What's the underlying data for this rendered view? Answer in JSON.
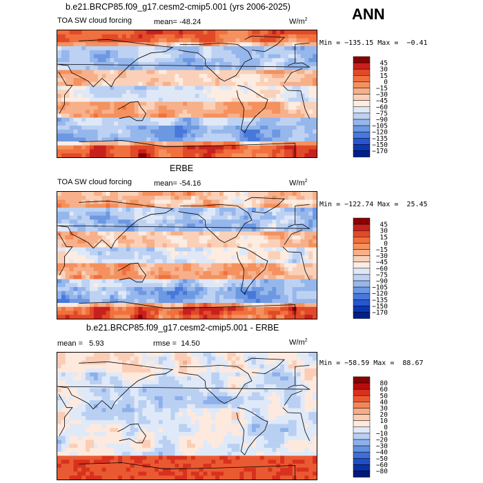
{
  "season": "ANN",
  "units": "W/m",
  "units_sup": "2",
  "chart_data": [
    {
      "type": "heatmap",
      "title": "b.e21.BRCP85.f09_g17.cesm2-cmip5.001 (yrs 2006-2025)",
      "left_label": "TOA SW cloud forcing",
      "stat_label": "mean=",
      "stat_value": "-48.24",
      "min_max": "Min = −135.15 Max =  −0.41",
      "min": -135.15,
      "max": -0.41,
      "colorbar_levels": [
        "45",
        "30",
        "15",
        "0",
        "−15",
        "−30",
        "−45",
        "−60",
        "−75",
        "−90",
        "−105",
        "−120",
        "−135",
        "−150",
        "−170"
      ],
      "colorbar_colors": [
        "#8b0000",
        "#c8201e",
        "#e04a28",
        "#f0703e",
        "#f4915e",
        "#f7b08a",
        "#fad1b8",
        "#fcece1",
        "#dfe8f7",
        "#bdd2f3",
        "#96b7ec",
        "#6d98e2",
        "#4878db",
        "#2756cf",
        "#0b36b3",
        "#001f8a"
      ],
      "pattern": "model"
    },
    {
      "type": "heatmap",
      "title": "ERBE",
      "left_label": "TOA SW cloud forcing",
      "stat_label": "mean=",
      "stat_value": "-54.16",
      "min_max": "Min = −122.74 Max =  25.45",
      "min": -122.74,
      "max": 25.45,
      "colorbar_levels": [
        "45",
        "30",
        "15",
        "0",
        "−15",
        "−30",
        "−45",
        "−60",
        "−75",
        "−90",
        "−105",
        "−120",
        "−135",
        "−150",
        "−170"
      ],
      "colorbar_colors": [
        "#8b0000",
        "#c8201e",
        "#e04a28",
        "#f0703e",
        "#f4915e",
        "#f7b08a",
        "#fad1b8",
        "#fcece1",
        "#dfe8f7",
        "#bdd2f3",
        "#96b7ec",
        "#6d98e2",
        "#4878db",
        "#2756cf",
        "#0b36b3",
        "#001f8a"
      ],
      "pattern": "obs"
    },
    {
      "type": "heatmap",
      "title": "b.e21.BRCP85.f09_g17.cesm2-cmip5.001 - ERBE",
      "left_label": "",
      "stat_label": "mean =",
      "stat_value": "5.93",
      "rmse_label": "rmse =",
      "rmse_value": "14.50",
      "min_max": "Min = −58.59 Max =  88.67",
      "min": -58.59,
      "max": 88.67,
      "colorbar_levels": [
        "80",
        "60",
        "50",
        "40",
        "30",
        "20",
        "10",
        "0",
        "−10",
        "−20",
        "−30",
        "−40",
        "−50",
        "−60",
        "−80"
      ],
      "colorbar_colors": [
        "#8b0000",
        "#b80d0d",
        "#d8311e",
        "#ea5a32",
        "#f4855a",
        "#f8ab87",
        "#fbcdb5",
        "#fde9dd",
        "#dfe9f8",
        "#b9d0f3",
        "#8db0ea",
        "#6490e0",
        "#3f6fd6",
        "#1f4fc6",
        "#0a31a6",
        "#001a78"
      ],
      "pattern": "diff"
    }
  ]
}
